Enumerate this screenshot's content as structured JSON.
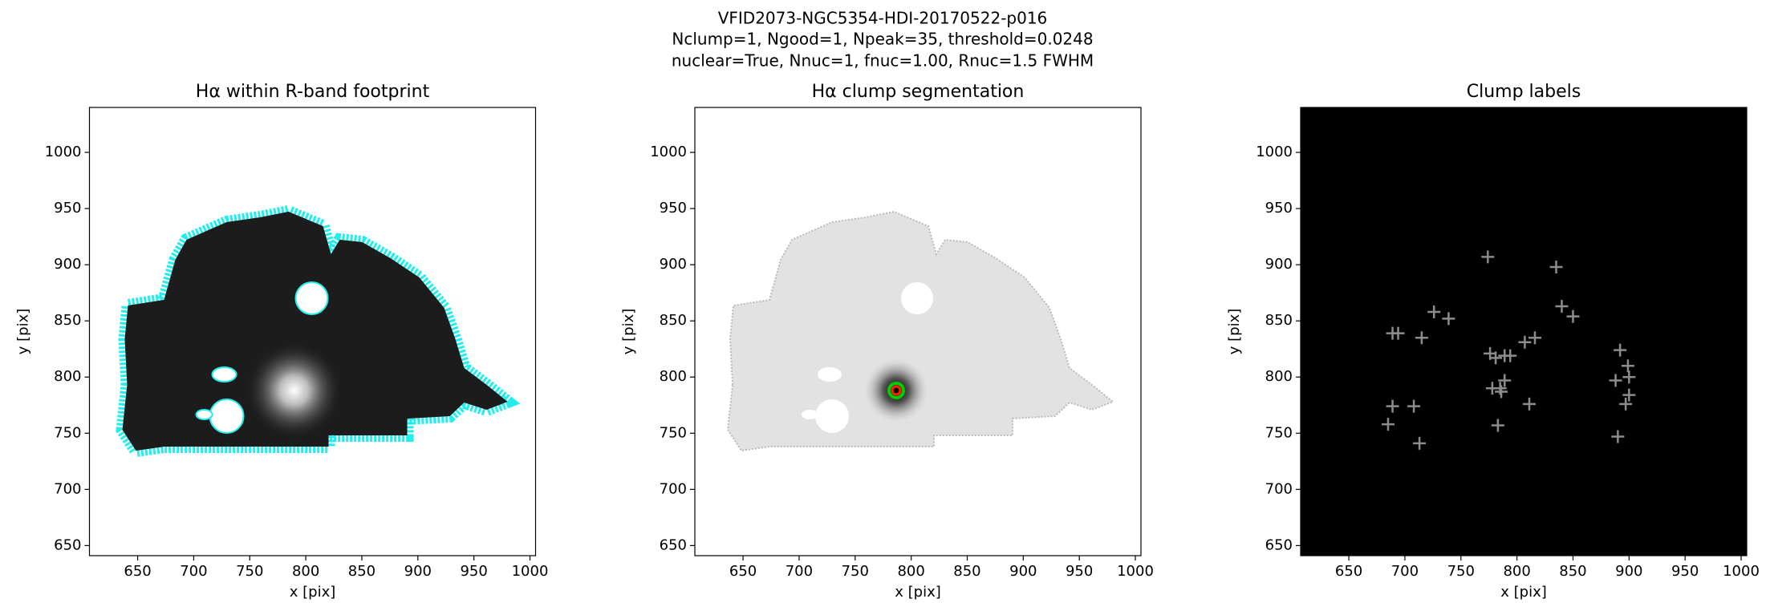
{
  "figure_title": [
    "VFID2073-NGC5354-HDI-20170522-p016",
    "Nclump=1, Ngood=1, Npeak=35, threshold=0.0248",
    "nuclear=True, Nnuc=1, fnuc=1.00, Rnuc=1.5 FWHM"
  ],
  "chart_data": [
    {
      "type": "image",
      "title": "Hα within R-band footprint",
      "x_label": "x [pix]",
      "y_label": "y [pix]",
      "xlim": [
        607,
        1005
      ],
      "ylim": [
        641,
        1040
      ],
      "xticks": [
        650,
        700,
        750,
        800,
        850,
        900,
        950,
        1000
      ],
      "yticks": [
        650,
        700,
        750,
        800,
        850,
        900,
        950,
        1000
      ]
    },
    {
      "type": "image",
      "title": "Hα clump segmentation",
      "x_label": "x [pix]",
      "y_label": "y [pix]",
      "xlim": [
        607,
        1005
      ],
      "ylim": [
        641,
        1040
      ],
      "xticks": [
        650,
        700,
        750,
        800,
        850,
        900,
        950,
        1000
      ],
      "yticks": [
        650,
        700,
        750,
        800,
        850,
        900,
        950,
        1000
      ]
    },
    {
      "type": "scatter",
      "title": "Clump labels",
      "x_label": "x [pix]",
      "y_label": "y [pix]",
      "xlim": [
        607,
        1005
      ],
      "ylim": [
        641,
        1040
      ],
      "xticks": [
        650,
        700,
        750,
        800,
        850,
        900,
        950,
        1000
      ],
      "yticks": [
        650,
        700,
        750,
        800,
        850,
        900,
        950,
        1000
      ],
      "background": "#000000",
      "color": "#8c8c8c",
      "x": [
        774,
        835,
        840,
        850,
        726,
        739,
        689,
        694,
        715,
        816,
        807,
        776,
        781,
        789,
        794,
        892,
        899,
        900,
        888,
        789,
        785,
        778,
        786,
        900,
        897,
        811,
        689,
        708,
        685,
        783,
        890,
        713
      ],
      "y": [
        907,
        898,
        863,
        854,
        858,
        852,
        839,
        839,
        835,
        835,
        831,
        821,
        817,
        819,
        819,
        824,
        810,
        800,
        797,
        797,
        790,
        790,
        787,
        784,
        776,
        776,
        774,
        774,
        758,
        757,
        747,
        741
      ]
    }
  ]
}
